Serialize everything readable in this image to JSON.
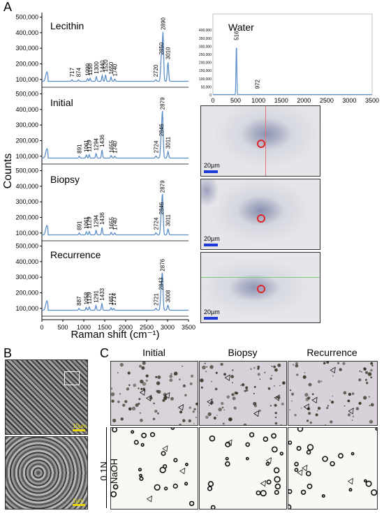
{
  "panel_labels": {
    "a": "A",
    "b": "B",
    "c": "C"
  },
  "colors": {
    "spectrum": "#5b8fc9",
    "scalebar_blue": "#1e3ad6",
    "marker_red": "#e0262a",
    "scalebar_yellow": "#e8d80f"
  },
  "spectra_axis": {
    "ylabel": "Counts",
    "xlabel": "Raman shift (cm⁻¹)",
    "y_ticks": [
      "500,000",
      "400,000",
      "300,000",
      "200,000",
      "100,000"
    ],
    "x_ticks": [
      "0",
      "500",
      "1000",
      "1500",
      "2000",
      "2500",
      "3000",
      "3500"
    ]
  },
  "chart_data": [
    {
      "type": "line",
      "title": "Lecithin",
      "xlim": [
        0,
        3500
      ],
      "ylim": [
        50000,
        520000
      ],
      "peaks": [
        "717",
        "874",
        "1090",
        "1150",
        "1300",
        "1440",
        "1520",
        "1650",
        "1740",
        "2720",
        "2850",
        "2890",
        "3010"
      ],
      "peak_x": [
        717,
        874,
        1090,
        1150,
        1300,
        1440,
        1520,
        1650,
        1740,
        2720,
        2850,
        2890,
        3010
      ],
      "peak_y": [
        98000,
        98000,
        105000,
        108000,
        118000,
        125000,
        130000,
        115000,
        102000,
        98000,
        240000,
        400000,
        210000
      ]
    },
    {
      "type": "line",
      "title": "Water",
      "xlim": [
        0,
        3500
      ],
      "ylim": [
        0,
        500000
      ],
      "y_ticks": [
        "400,000",
        "350,000",
        "300,000",
        "250,000",
        "200,000",
        "150,000",
        "100,000",
        "50,000",
        "0"
      ],
      "peaks": [
        "516",
        "972"
      ],
      "peak_x": [
        516,
        972
      ],
      "peak_y": [
        320000,
        2000
      ]
    },
    {
      "type": "line",
      "title": "Initial",
      "xlim": [
        0,
        3500
      ],
      "ylim": [
        50000,
        520000
      ],
      "peaks": [
        "891",
        "1061",
        "1129",
        "1294",
        "1436",
        "1655",
        "1740",
        "2724",
        "2846",
        "2879",
        "3011"
      ],
      "peak_x": [
        891,
        1061,
        1129,
        1294,
        1436,
        1655,
        1740,
        2724,
        2846,
        2879,
        3011
      ],
      "peak_y": [
        100000,
        108000,
        110000,
        118000,
        140000,
        105000,
        100000,
        102000,
        210000,
        380000,
        130000
      ]
    },
    {
      "type": "line",
      "title": "Biopsy",
      "xlim": [
        0,
        3500
      ],
      "ylim": [
        50000,
        520000
      ],
      "peaks": [
        "891",
        "1061",
        "1129",
        "1294",
        "1436",
        "1655",
        "1740",
        "2724",
        "2846",
        "2879",
        "3011"
      ],
      "peak_x": [
        891,
        1061,
        1129,
        1294,
        1436,
        1655,
        1740,
        2724,
        2846,
        2879,
        3011
      ],
      "peak_y": [
        100000,
        108000,
        110000,
        118000,
        135000,
        105000,
        100000,
        102000,
        200000,
        340000,
        125000
      ]
    },
    {
      "type": "line",
      "title": "Recurrence",
      "xlim": [
        0,
        3500
      ],
      "ylim": [
        50000,
        520000
      ],
      "peaks": [
        "887",
        "1058",
        "1129",
        "1291",
        "1433",
        "1651",
        "1714",
        "2721",
        "2843",
        "2876",
        "3008"
      ],
      "peak_x": [
        887,
        1058,
        1129,
        1291,
        1433,
        1651,
        1714,
        2721,
        2843,
        2876,
        3008
      ],
      "peak_y": [
        100000,
        106000,
        110000,
        118000,
        132000,
        104000,
        100000,
        100000,
        200000,
        320000,
        120000
      ]
    }
  ],
  "micrographs_a": {
    "scale_label": "20µm"
  },
  "em_b": {
    "scale_label_top": "10µm",
    "scale_label_bottom": "1µm"
  },
  "panel_c": {
    "columns": [
      "Initial",
      "Biopsy",
      "Recurrence"
    ],
    "row_label": "0.1N NaOH"
  }
}
